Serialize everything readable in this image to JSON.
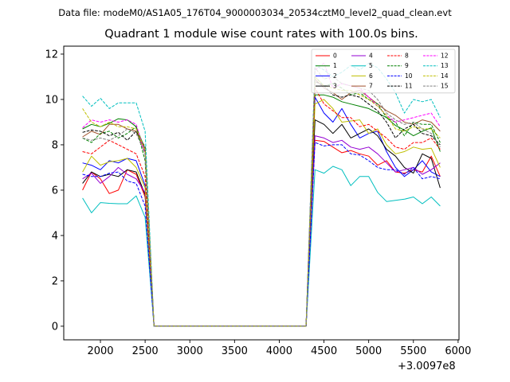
{
  "figure": {
    "suptitle": "Data file: modeM0/AS1A05_176T04_9000003034_20534cztM0_level2_quad_clean.evt",
    "offset_label": "+3.0097e8"
  },
  "chart_data": {
    "type": "line",
    "title": "Quadrant 1 module wise count rates with 100.0s bins.",
    "xlabel": "",
    "ylabel": "",
    "xlim": [
      1590,
      6010
    ],
    "ylim": [
      -0.6,
      12.35
    ],
    "xticks": [
      2000,
      2500,
      3000,
      3500,
      4000,
      4500,
      5000,
      5500,
      6000
    ],
    "yticks": [
      0,
      2,
      4,
      6,
      8,
      10,
      12
    ],
    "x_offset": 300970000,
    "grid": false,
    "legend": {
      "placement": "top-right",
      "columns": 4
    },
    "x": [
      1800,
      1900,
      2000,
      2100,
      2200,
      2300,
      2400,
      2500,
      2600,
      2700,
      2800,
      2900,
      3000,
      3100,
      3200,
      3300,
      3400,
      3500,
      3600,
      3700,
      3800,
      3900,
      4000,
      4100,
      4200,
      4300,
      4400,
      4500,
      4600,
      4700,
      4800,
      4900,
      5000,
      5100,
      5200,
      5300,
      5400,
      5500,
      5600,
      5700,
      5800
    ],
    "series": [
      {
        "name": "0",
        "color": "#ff0000",
        "dash": "solid",
        "values": [
          6.0,
          6.8,
          6.5,
          5.85,
          6.0,
          6.9,
          6.7,
          5.7,
          0,
          0,
          0,
          0,
          0,
          0,
          0,
          0,
          0,
          0,
          0,
          0,
          0,
          0,
          0,
          0,
          0,
          0,
          8.2,
          8.15,
          7.9,
          7.65,
          7.75,
          7.6,
          7.5,
          7.1,
          7.3,
          6.8,
          6.75,
          6.9,
          6.8,
          7.5,
          6.6
        ]
      },
      {
        "name": "1",
        "color": "#008000",
        "dash": "solid",
        "values": [
          8.7,
          8.9,
          8.8,
          8.95,
          9.15,
          9.1,
          8.8,
          7.8,
          0,
          0,
          0,
          0,
          0,
          0,
          0,
          0,
          0,
          0,
          0,
          0,
          0,
          0,
          0,
          0,
          0,
          0,
          10.2,
          10.2,
          10.1,
          9.9,
          9.8,
          9.7,
          9.6,
          9.4,
          9.2,
          8.85,
          8.65,
          8.4,
          8.6,
          8.75,
          7.7
        ]
      },
      {
        "name": "2",
        "color": "#0000ff",
        "dash": "solid",
        "values": [
          7.2,
          7.1,
          6.9,
          7.3,
          7.2,
          7.4,
          7.3,
          6.2,
          0,
          0,
          0,
          0,
          0,
          0,
          0,
          0,
          0,
          0,
          0,
          0,
          0,
          0,
          0,
          0,
          0,
          0,
          10.1,
          9.4,
          9.0,
          9.6,
          8.9,
          8.3,
          8.5,
          8.6,
          7.7,
          7.0,
          6.6,
          6.9,
          7.3,
          6.8,
          6.6
        ]
      },
      {
        "name": "3",
        "color": "#000000",
        "dash": "solid",
        "values": [
          6.3,
          6.8,
          6.6,
          6.7,
          6.6,
          6.9,
          6.8,
          5.8,
          0,
          0,
          0,
          0,
          0,
          0,
          0,
          0,
          0,
          0,
          0,
          0,
          0,
          0,
          0,
          0,
          0,
          0,
          9.1,
          8.9,
          8.5,
          8.9,
          8.3,
          8.5,
          8.7,
          8.4,
          7.8,
          7.5,
          7.0,
          6.75,
          7.6,
          7.4,
          6.1
        ]
      },
      {
        "name": "4",
        "color": "#9400d3",
        "dash": "solid",
        "values": [
          6.5,
          6.75,
          6.3,
          6.6,
          7.0,
          6.7,
          6.5,
          5.9,
          0,
          0,
          0,
          0,
          0,
          0,
          0,
          0,
          0,
          0,
          0,
          0,
          0,
          0,
          0,
          0,
          0,
          0,
          8.4,
          8.3,
          8.1,
          8.2,
          7.9,
          7.8,
          7.9,
          7.6,
          7.2,
          6.8,
          6.9,
          7.0,
          6.7,
          6.9,
          7.2
        ]
      },
      {
        "name": "5",
        "color": "#00bfbf",
        "dash": "solid",
        "values": [
          5.65,
          5.0,
          5.45,
          5.42,
          5.4,
          5.4,
          5.75,
          4.8,
          0,
          0,
          0,
          0,
          0,
          0,
          0,
          0,
          0,
          0,
          0,
          0,
          0,
          0,
          0,
          0,
          0,
          0,
          6.9,
          6.75,
          7.05,
          6.9,
          6.2,
          6.6,
          6.6,
          5.9,
          5.5,
          5.55,
          5.6,
          5.7,
          5.4,
          5.7,
          5.3
        ]
      },
      {
        "name": "6",
        "color": "#bfbf00",
        "dash": "solid",
        "values": [
          6.8,
          7.5,
          7.1,
          7.25,
          7.3,
          7.4,
          7.0,
          6.1,
          0,
          0,
          0,
          0,
          0,
          0,
          0,
          0,
          0,
          0,
          0,
          0,
          0,
          0,
          0,
          0,
          0,
          0,
          9.8,
          10.0,
          9.6,
          9.0,
          9.05,
          9.1,
          8.5,
          8.7,
          8.0,
          7.6,
          7.7,
          7.9,
          7.8,
          7.85,
          7.0
        ]
      },
      {
        "name": "7",
        "color": "#a0522d",
        "dash": "solid",
        "values": [
          8.35,
          8.6,
          8.45,
          8.9,
          8.9,
          8.7,
          8.6,
          7.7,
          0,
          0,
          0,
          0,
          0,
          0,
          0,
          0,
          0,
          0,
          0,
          0,
          0,
          0,
          0,
          0,
          0,
          0,
          10.9,
          10.5,
          10.3,
          10.0,
          10.3,
          10.4,
          10.1,
          9.8,
          9.5,
          9.3,
          9.0,
          8.9,
          9.1,
          9.0,
          8.6
        ]
      },
      {
        "name": "8",
        "color": "#ff0000",
        "dash": "dashed",
        "values": [
          7.7,
          7.6,
          7.9,
          8.2,
          8.0,
          7.8,
          7.6,
          6.6,
          0,
          0,
          0,
          0,
          0,
          0,
          0,
          0,
          0,
          0,
          0,
          0,
          0,
          0,
          0,
          0,
          0,
          0,
          10.5,
          9.8,
          9.5,
          9.2,
          9.2,
          8.8,
          8.9,
          8.6,
          8.3,
          7.9,
          7.8,
          8.1,
          8.1,
          8.3,
          7.8
        ]
      },
      {
        "name": "9",
        "color": "#008000",
        "dash": "dashed",
        "values": [
          8.3,
          8.1,
          8.5,
          8.6,
          8.3,
          8.5,
          8.8,
          7.3,
          0,
          0,
          0,
          0,
          0,
          0,
          0,
          0,
          0,
          0,
          0,
          0,
          0,
          0,
          0,
          0,
          0,
          0,
          11.0,
          10.6,
          10.7,
          10.5,
          10.2,
          10.3,
          10.0,
          9.8,
          9.2,
          9.0,
          8.4,
          9.0,
          8.9,
          8.9,
          8.1
        ]
      },
      {
        "name": "10",
        "color": "#0000ff",
        "dash": "dashed",
        "values": [
          6.7,
          6.6,
          6.6,
          6.75,
          6.8,
          6.4,
          6.3,
          5.3,
          0,
          0,
          0,
          0,
          0,
          0,
          0,
          0,
          0,
          0,
          0,
          0,
          0,
          0,
          0,
          0,
          0,
          0,
          8.1,
          7.95,
          8.0,
          8.0,
          7.6,
          7.55,
          7.3,
          7.0,
          6.9,
          6.9,
          6.7,
          7.0,
          6.5,
          6.6,
          6.5
        ]
      },
      {
        "name": "11",
        "color": "#000000",
        "dash": "dashed",
        "values": [
          8.55,
          8.65,
          8.6,
          8.4,
          8.55,
          8.2,
          8.6,
          7.9,
          0,
          0,
          0,
          0,
          0,
          0,
          0,
          0,
          0,
          0,
          0,
          0,
          0,
          0,
          0,
          0,
          0,
          0,
          10.8,
          10.6,
          10.2,
          10.1,
          10.2,
          10.1,
          9.8,
          9.5,
          9.0,
          8.3,
          8.7,
          8.9,
          8.5,
          8.4,
          8.0
        ]
      },
      {
        "name": "12",
        "color": "#ff00ff",
        "dash": "dashed",
        "values": [
          8.75,
          9.1,
          9.0,
          9.1,
          9.0,
          9.1,
          8.9,
          7.6,
          0,
          0,
          0,
          0,
          0,
          0,
          0,
          0,
          0,
          0,
          0,
          0,
          0,
          0,
          0,
          0,
          0,
          0,
          11.3,
          11.6,
          10.5,
          10.7,
          10.6,
          10.5,
          10.1,
          9.7,
          9.3,
          9.0,
          9.1,
          9.2,
          9.3,
          9.4,
          8.8
        ]
      },
      {
        "name": "13",
        "color": "#00bfbf",
        "dash": "dashed",
        "values": [
          10.15,
          9.7,
          10.05,
          9.6,
          9.85,
          9.85,
          9.85,
          8.6,
          0,
          0,
          0,
          0,
          0,
          0,
          0,
          0,
          0,
          0,
          0,
          0,
          0,
          0,
          0,
          0,
          0,
          0,
          11.5,
          11.3,
          11.0,
          11.2,
          11.5,
          11.3,
          11.6,
          11.4,
          10.9,
          10.3,
          9.4,
          10.0,
          9.9,
          10.0,
          9.2
        ]
      },
      {
        "name": "14",
        "color": "#bfbf00",
        "dash": "dashed",
        "values": [
          9.6,
          9.0,
          8.8,
          9.0,
          8.8,
          8.8,
          8.7,
          7.8,
          0,
          0,
          0,
          0,
          0,
          0,
          0,
          0,
          0,
          0,
          0,
          0,
          0,
          0,
          0,
          0,
          0,
          0,
          11.0,
          10.6,
          10.5,
          10.4,
          10.4,
          10.2,
          10.0,
          9.7,
          9.3,
          8.7,
          8.6,
          8.8,
          8.7,
          8.7,
          8.3
        ]
      },
      {
        "name": "15",
        "color": "#808080",
        "dash": "dashed",
        "values": [
          8.3,
          8.2,
          8.3,
          8.2,
          8.4,
          8.7,
          8.5,
          7.6,
          0,
          0,
          0,
          0,
          0,
          0,
          0,
          0,
          0,
          0,
          0,
          0,
          0,
          0,
          0,
          0,
          0,
          0,
          11.4,
          10.9,
          11.0,
          10.7,
          10.6,
          10.5,
          10.4,
          10.0,
          9.4,
          9.1,
          8.9,
          9.0,
          8.7,
          8.5,
          7.9
        ]
      }
    ]
  }
}
